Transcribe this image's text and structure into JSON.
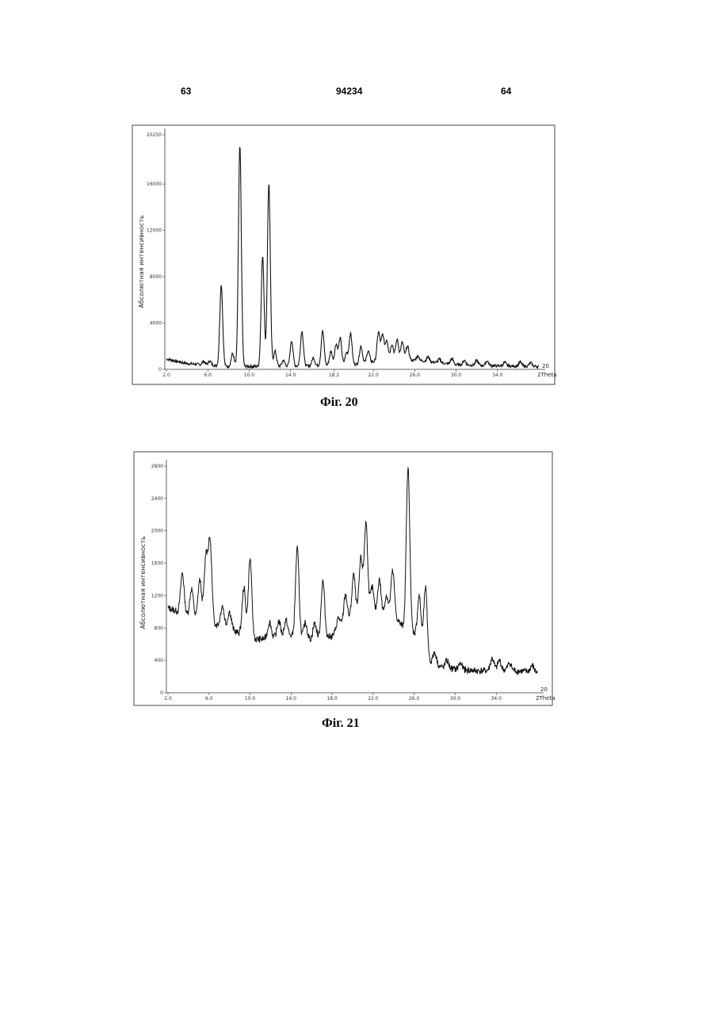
{
  "header": {
    "left_page": "63",
    "patent_number": "94234",
    "right_page": "64"
  },
  "chart_data": [
    {
      "type": "line",
      "caption": "Фіг. 20",
      "ylabel": "Абсолютная интенсивность",
      "xunit_label": "2Theta",
      "xunit_top": "20",
      "xlim": [
        2.0,
        38.0
      ],
      "ylim": [
        0,
        20250
      ],
      "xticks": [
        2.0,
        6.0,
        10.0,
        14.0,
        18.2,
        22.0,
        26.0,
        30.0,
        34.0
      ],
      "xtick_labels": [
        "2.0",
        "6.0",
        "10.0",
        "14.0",
        "18.2",
        "22.0",
        "26.0",
        "30.0",
        "34.0"
      ],
      "yticks": [
        0,
        4000,
        8000,
        12000,
        16000,
        20250
      ],
      "ytick_labels": [
        "0",
        "4000",
        "8000",
        "12000",
        "16000",
        "20250"
      ],
      "baseline": [
        [
          2.0,
          900
        ],
        [
          4.0,
          500
        ],
        [
          8.0,
          250
        ],
        [
          12.0,
          250
        ],
        [
          16.0,
          300
        ],
        [
          20.0,
          400
        ],
        [
          24.0,
          900
        ],
        [
          27.0,
          700
        ],
        [
          30.0,
          400
        ],
        [
          34.0,
          300
        ],
        [
          38.0,
          250
        ]
      ],
      "peaks": [
        {
          "x": 5.6,
          "y": 300
        },
        {
          "x": 6.2,
          "y": 350
        },
        {
          "x": 7.3,
          "y": 7000
        },
        {
          "x": 8.4,
          "y": 1100
        },
        {
          "x": 9.1,
          "y": 19000
        },
        {
          "x": 11.3,
          "y": 9500
        },
        {
          "x": 11.9,
          "y": 15800
        },
        {
          "x": 12.5,
          "y": 1300
        },
        {
          "x": 13.3,
          "y": 500
        },
        {
          "x": 14.1,
          "y": 2200
        },
        {
          "x": 15.1,
          "y": 3000
        },
        {
          "x": 16.2,
          "y": 700
        },
        {
          "x": 17.1,
          "y": 3000
        },
        {
          "x": 17.9,
          "y": 1200
        },
        {
          "x": 18.4,
          "y": 1800
        },
        {
          "x": 18.8,
          "y": 2300
        },
        {
          "x": 19.4,
          "y": 1000
        },
        {
          "x": 19.8,
          "y": 2700
        },
        {
          "x": 20.8,
          "y": 1500
        },
        {
          "x": 21.5,
          "y": 1000
        },
        {
          "x": 22.5,
          "y": 2500
        },
        {
          "x": 22.9,
          "y": 2200
        },
        {
          "x": 23.3,
          "y": 1700
        },
        {
          "x": 23.8,
          "y": 1300
        },
        {
          "x": 24.3,
          "y": 1700
        },
        {
          "x": 24.8,
          "y": 1500
        },
        {
          "x": 25.3,
          "y": 1200
        },
        {
          "x": 26.3,
          "y": 400
        },
        {
          "x": 27.3,
          "y": 400
        },
        {
          "x": 28.4,
          "y": 300
        },
        {
          "x": 29.6,
          "y": 500
        },
        {
          "x": 30.8,
          "y": 400
        },
        {
          "x": 32.0,
          "y": 400
        },
        {
          "x": 33.0,
          "y": 400
        },
        {
          "x": 34.7,
          "y": 300
        },
        {
          "x": 36.2,
          "y": 350
        },
        {
          "x": 37.2,
          "y": 300
        }
      ]
    },
    {
      "type": "line",
      "caption": "Фіг. 21",
      "ylabel": "Абсолютная интенсивность",
      "xunit_label": "2Theta",
      "xunit_top": "20",
      "xlim": [
        2.0,
        38.0
      ],
      "ylim": [
        0,
        2800
      ],
      "xticks": [
        2.0,
        6.0,
        10.0,
        14.0,
        18.0,
        22.0,
        26.0,
        30.0,
        34.0
      ],
      "xtick_labels": [
        "2.0",
        "6.0",
        "10.0",
        "14.0",
        "18.0",
        "22.0",
        "26.0",
        "30.0",
        "34.0"
      ],
      "yticks": [
        0,
        400,
        800,
        1200,
        1600,
        2000,
        2400,
        2800
      ],
      "ytick_labels": [
        "0",
        "400",
        "800",
        "1200",
        "1600",
        "2000",
        "2400",
        "2800"
      ],
      "baseline": [
        [
          2.0,
          1050
        ],
        [
          5.0,
          900
        ],
        [
          8.0,
          800
        ],
        [
          10.0,
          650
        ],
        [
          14.0,
          700
        ],
        [
          16.0,
          650
        ],
        [
          18.0,
          700
        ],
        [
          20.0,
          950
        ],
        [
          22.0,
          950
        ],
        [
          24.0,
          950
        ],
        [
          25.0,
          800
        ],
        [
          26.5,
          700
        ],
        [
          27.0,
          400
        ],
        [
          29.0,
          300
        ],
        [
          32.0,
          270
        ],
        [
          35.0,
          280
        ],
        [
          38.0,
          250
        ]
      ],
      "peaks": [
        {
          "x": 3.4,
          "y": 500
        },
        {
          "x": 4.3,
          "y": 350
        },
        {
          "x": 5.1,
          "y": 500
        },
        {
          "x": 5.7,
          "y": 800
        },
        {
          "x": 6.1,
          "y": 1000
        },
        {
          "x": 7.3,
          "y": 250
        },
        {
          "x": 8.0,
          "y": 200
        },
        {
          "x": 9.4,
          "y": 600
        },
        {
          "x": 10.0,
          "y": 1000
        },
        {
          "x": 11.9,
          "y": 200
        },
        {
          "x": 12.8,
          "y": 200
        },
        {
          "x": 13.5,
          "y": 200
        },
        {
          "x": 14.6,
          "y": 1100
        },
        {
          "x": 15.4,
          "y": 200
        },
        {
          "x": 16.3,
          "y": 200
        },
        {
          "x": 17.1,
          "y": 700
        },
        {
          "x": 18.6,
          "y": 150
        },
        {
          "x": 19.3,
          "y": 350
        },
        {
          "x": 20.1,
          "y": 500
        },
        {
          "x": 20.8,
          "y": 700
        },
        {
          "x": 21.3,
          "y": 1150
        },
        {
          "x": 21.9,
          "y": 350
        },
        {
          "x": 22.6,
          "y": 450
        },
        {
          "x": 23.3,
          "y": 250
        },
        {
          "x": 23.9,
          "y": 550
        },
        {
          "x": 25.4,
          "y": 2000
        },
        {
          "x": 26.5,
          "y": 500
        },
        {
          "x": 27.1,
          "y": 900
        },
        {
          "x": 28.0,
          "y": 150
        },
        {
          "x": 29.2,
          "y": 100
        },
        {
          "x": 30.5,
          "y": 80
        },
        {
          "x": 33.6,
          "y": 150
        },
        {
          "x": 34.3,
          "y": 120
        },
        {
          "x": 35.3,
          "y": 90
        },
        {
          "x": 37.5,
          "y": 80
        }
      ]
    }
  ]
}
